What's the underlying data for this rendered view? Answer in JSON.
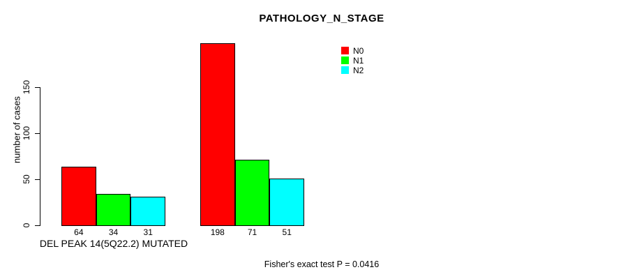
{
  "chart_data": {
    "type": "bar",
    "title": "PATHOLOGY_N_STAGE",
    "ylabel": "number of cases",
    "xlabel": "",
    "yticks": [
      0,
      50,
      100,
      150
    ],
    "ylim": [
      0,
      150
    ],
    "grid": false,
    "legend_position": "top-right",
    "categories": [
      "DEL PEAK 14(5Q22.2) MUTATED",
      ""
    ],
    "series": [
      {
        "name": "N0",
        "color": "#ff0000",
        "values": [
          64,
          198
        ]
      },
      {
        "name": "N1",
        "color": "#00ff00",
        "values": [
          34,
          71
        ]
      },
      {
        "name": "N2",
        "color": "#00ffff",
        "values": [
          31,
          51
        ]
      }
    ],
    "bar_value_labels": [
      [
        64,
        34,
        31
      ],
      [
        198,
        71,
        51
      ]
    ],
    "group_label": "DEL PEAK 14(5Q22.2) MUTATED",
    "annotation": "Fisher's exact test P = 0.0416",
    "bar_border_color": "#000000",
    "axis_color": "#000000",
    "background_color": "#ffffff"
  }
}
